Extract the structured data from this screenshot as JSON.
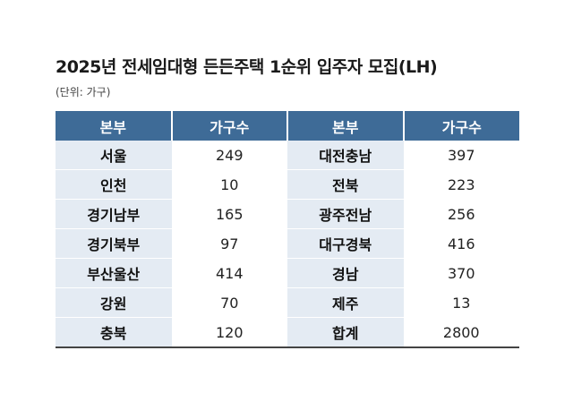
{
  "title": "2025년 전세임대형 든든주택 1순위 입주자 모집(LH)",
  "unit": "(단위: 가구)",
  "headers": [
    "본부",
    "가구수",
    "본부",
    "가구수"
  ],
  "rows": [
    {
      "r1": "서울",
      "c1": "249",
      "r2": "대전충남",
      "c2": "397"
    },
    {
      "r1": "인천",
      "c1": "10",
      "r2": "전북",
      "c2": "223"
    },
    {
      "r1": "경기남부",
      "c1": "165",
      "r2": "광주전남",
      "c2": "256"
    },
    {
      "r1": "경기북부",
      "c1": "97",
      "r2": "대구경북",
      "c2": "416"
    },
    {
      "r1": "부산울산",
      "c1": "414",
      "r2": "경남",
      "c2": "370"
    },
    {
      "r1": "강원",
      "c1": "70",
      "r2": "제주",
      "c2": "13"
    },
    {
      "r1": "충북",
      "c1": "120",
      "r2": "합계",
      "c2": "2800"
    }
  ]
}
